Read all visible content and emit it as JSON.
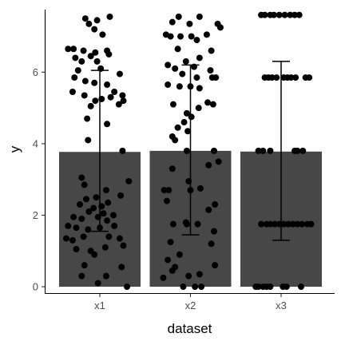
{
  "chart_data": {
    "type": "bar",
    "xlabel": "dataset",
    "ylabel": "y",
    "ylim": [
      -0.2,
      7.75
    ],
    "yticks": [
      0,
      2,
      4,
      6
    ],
    "grid": false,
    "legend": "none",
    "categories": [
      "x1",
      "x2",
      "x3"
    ],
    "values": [
      3.77,
      3.8,
      3.78
    ],
    "error_bars": [
      {
        "category": "x1",
        "lower": 1.55,
        "upper": 6.05
      },
      {
        "category": "x2",
        "lower": 1.45,
        "upper": 6.2
      },
      {
        "category": "x3",
        "lower": 1.3,
        "upper": 6.3
      }
    ],
    "points": {
      "x1": [
        [
          -0.16,
          7.5
        ],
        [
          -0.12,
          7.35
        ],
        [
          -0.03,
          7.45
        ],
        [
          0.11,
          7.55
        ],
        [
          -0.06,
          7.2
        ],
        [
          0.03,
          7.05
        ],
        [
          -0.35,
          6.65
        ],
        [
          -0.29,
          6.65
        ],
        [
          -0.18,
          6.6
        ],
        [
          -0.05,
          6.55
        ],
        [
          0.08,
          6.6
        ],
        [
          0.1,
          6.5
        ],
        [
          -0.27,
          6.4
        ],
        [
          -0.1,
          6.45
        ],
        [
          -0.03,
          6.3
        ],
        [
          0.01,
          6.1
        ],
        [
          -0.2,
          6.3
        ],
        [
          -0.24,
          6.05
        ],
        [
          0.22,
          5.95
        ],
        [
          -0.28,
          5.85
        ],
        [
          -0.16,
          5.75
        ],
        [
          -0.06,
          5.7
        ],
        [
          0.08,
          5.65
        ],
        [
          0.16,
          5.45
        ],
        [
          -0.3,
          5.45
        ],
        [
          -0.17,
          5.35
        ],
        [
          -0.05,
          5.2
        ],
        [
          0.02,
          5.25
        ],
        [
          0.12,
          5.3
        ],
        [
          0.25,
          5.35
        ],
        [
          0.26,
          5.2
        ],
        [
          -0.1,
          5.05
        ],
        [
          0.21,
          5.1
        ],
        [
          -0.14,
          4.7
        ],
        [
          0.08,
          4.55
        ],
        [
          -0.13,
          4.1
        ],
        [
          0.25,
          3.8
        ],
        [
          -0.2,
          3.05
        ],
        [
          0.32,
          2.95
        ],
        [
          -0.17,
          2.85
        ],
        [
          0.07,
          2.7
        ],
        [
          0.23,
          2.55
        ],
        [
          -0.15,
          2.45
        ],
        [
          -0.04,
          2.5
        ],
        [
          0.09,
          2.35
        ],
        [
          -0.22,
          2.3
        ],
        [
          -0.07,
          2.2
        ],
        [
          0.02,
          2.25
        ],
        [
          -0.12,
          2.1
        ],
        [
          0.04,
          2.05
        ],
        [
          0.15,
          2.0
        ],
        [
          -0.29,
          1.95
        ],
        [
          -0.2,
          1.9
        ],
        [
          -0.02,
          1.95
        ],
        [
          0.08,
          1.85
        ],
        [
          0.16,
          1.7
        ],
        [
          -0.35,
          1.7
        ],
        [
          -0.26,
          1.65
        ],
        [
          -0.13,
          1.6
        ],
        [
          0.0,
          1.65
        ],
        [
          -0.37,
          1.35
        ],
        [
          -0.3,
          1.3
        ],
        [
          -0.18,
          1.4
        ],
        [
          0.1,
          1.4
        ],
        [
          0.22,
          1.35
        ],
        [
          -0.26,
          1.05
        ],
        [
          -0.1,
          1.0
        ],
        [
          0.06,
          1.1
        ],
        [
          0.26,
          1.15
        ],
        [
          -0.06,
          0.9
        ],
        [
          -0.17,
          0.6
        ],
        [
          0.24,
          0.55
        ],
        [
          -0.2,
          0.3
        ],
        [
          0.07,
          0.3
        ],
        [
          -0.02,
          0.1
        ],
        [
          0.3,
          0.0
        ]
      ],
      "x2": [
        [
          -0.13,
          7.55
        ],
        [
          0.1,
          7.55
        ],
        [
          -0.2,
          7.4
        ],
        [
          -0.01,
          7.35
        ],
        [
          0.3,
          7.35
        ],
        [
          0.33,
          7.25
        ],
        [
          -0.27,
          7.05
        ],
        [
          -0.22,
          7.0
        ],
        [
          -0.11,
          7.0
        ],
        [
          0.01,
          7.0
        ],
        [
          0.07,
          6.9
        ],
        [
          0.18,
          7.05
        ],
        [
          -0.14,
          6.65
        ],
        [
          0.23,
          6.6
        ],
        [
          -0.05,
          6.3
        ],
        [
          0.1,
          6.4
        ],
        [
          -0.25,
          6.2
        ],
        [
          -0.17,
          6.1
        ],
        [
          0.04,
          6.15
        ],
        [
          0.22,
          6.05
        ],
        [
          0.24,
          5.85
        ],
        [
          0.28,
          5.85
        ],
        [
          -0.09,
          5.95
        ],
        [
          0.07,
          5.85
        ],
        [
          -0.25,
          5.65
        ],
        [
          -0.12,
          5.6
        ],
        [
          0.0,
          5.6
        ],
        [
          0.1,
          5.55
        ],
        [
          -0.19,
          5.1
        ],
        [
          0.19,
          5.15
        ],
        [
          0.25,
          5.1
        ],
        [
          0.09,
          5.0
        ],
        [
          -0.04,
          4.85
        ],
        [
          0.01,
          4.75
        ],
        [
          -0.07,
          4.6
        ],
        [
          -0.14,
          4.45
        ],
        [
          -0.03,
          4.35
        ],
        [
          -0.2,
          4.2
        ],
        [
          -0.17,
          4.1
        ],
        [
          0.26,
          3.8
        ],
        [
          -0.04,
          3.8
        ],
        [
          0.31,
          3.5
        ],
        [
          0.2,
          3.4
        ],
        [
          -0.2,
          3.3
        ],
        [
          -0.02,
          2.95
        ],
        [
          0.11,
          2.75
        ],
        [
          -0.29,
          2.7
        ],
        [
          -0.24,
          2.7
        ],
        [
          0.0,
          2.7
        ],
        [
          -0.26,
          2.4
        ],
        [
          0.27,
          2.3
        ],
        [
          0.2,
          2.15
        ],
        [
          -0.05,
          1.8
        ],
        [
          -0.19,
          1.75
        ],
        [
          -0.04,
          1.75
        ],
        [
          0.08,
          1.75
        ],
        [
          -0.22,
          1.25
        ],
        [
          0.26,
          1.55
        ],
        [
          0.23,
          1.2
        ],
        [
          -0.25,
          0.75
        ],
        [
          -0.12,
          0.9
        ],
        [
          -0.17,
          0.55
        ],
        [
          -0.2,
          0.45
        ],
        [
          0.27,
          0.6
        ],
        [
          -0.02,
          0.3
        ],
        [
          0.1,
          0.35
        ],
        [
          -0.3,
          0.25
        ],
        [
          -0.08,
          0.0
        ],
        [
          0.05,
          0.0
        ],
        [
          0.12,
          0.0
        ]
      ],
      "x3": [
        [
          -0.22,
          7.6
        ],
        [
          -0.18,
          7.6
        ],
        [
          -0.12,
          7.6
        ],
        [
          -0.08,
          7.6
        ],
        [
          -0.02,
          7.6
        ],
        [
          0.04,
          7.6
        ],
        [
          0.1,
          7.6
        ],
        [
          0.15,
          7.6
        ],
        [
          0.2,
          7.6
        ],
        [
          -0.18,
          5.85
        ],
        [
          -0.14,
          5.85
        ],
        [
          -0.1,
          5.85
        ],
        [
          -0.05,
          5.85
        ],
        [
          0.03,
          5.85
        ],
        [
          0.07,
          5.85
        ],
        [
          0.11,
          5.85
        ],
        [
          0.16,
          5.85
        ],
        [
          0.27,
          5.85
        ],
        [
          0.31,
          5.85
        ],
        [
          -0.25,
          3.8
        ],
        [
          -0.2,
          3.8
        ],
        [
          -0.12,
          3.8
        ],
        [
          0.15,
          3.8
        ],
        [
          0.18,
          3.8
        ],
        [
          0.24,
          3.8
        ],
        [
          -0.22,
          1.75
        ],
        [
          -0.16,
          1.75
        ],
        [
          -0.12,
          1.75
        ],
        [
          -0.07,
          1.75
        ],
        [
          -0.02,
          1.75
        ],
        [
          0.03,
          1.75
        ],
        [
          0.08,
          1.75
        ],
        [
          0.13,
          1.75
        ],
        [
          0.18,
          1.75
        ],
        [
          0.23,
          1.75
        ],
        [
          0.29,
          1.75
        ],
        [
          0.33,
          1.75
        ],
        [
          -0.28,
          0.0
        ],
        [
          -0.25,
          0.0
        ],
        [
          -0.2,
          0.0
        ],
        [
          -0.16,
          0.0
        ],
        [
          -0.12,
          0.0
        ],
        [
          0.02,
          0.0
        ],
        [
          0.06,
          0.0
        ],
        [
          0.22,
          0.0
        ]
      ]
    }
  }
}
